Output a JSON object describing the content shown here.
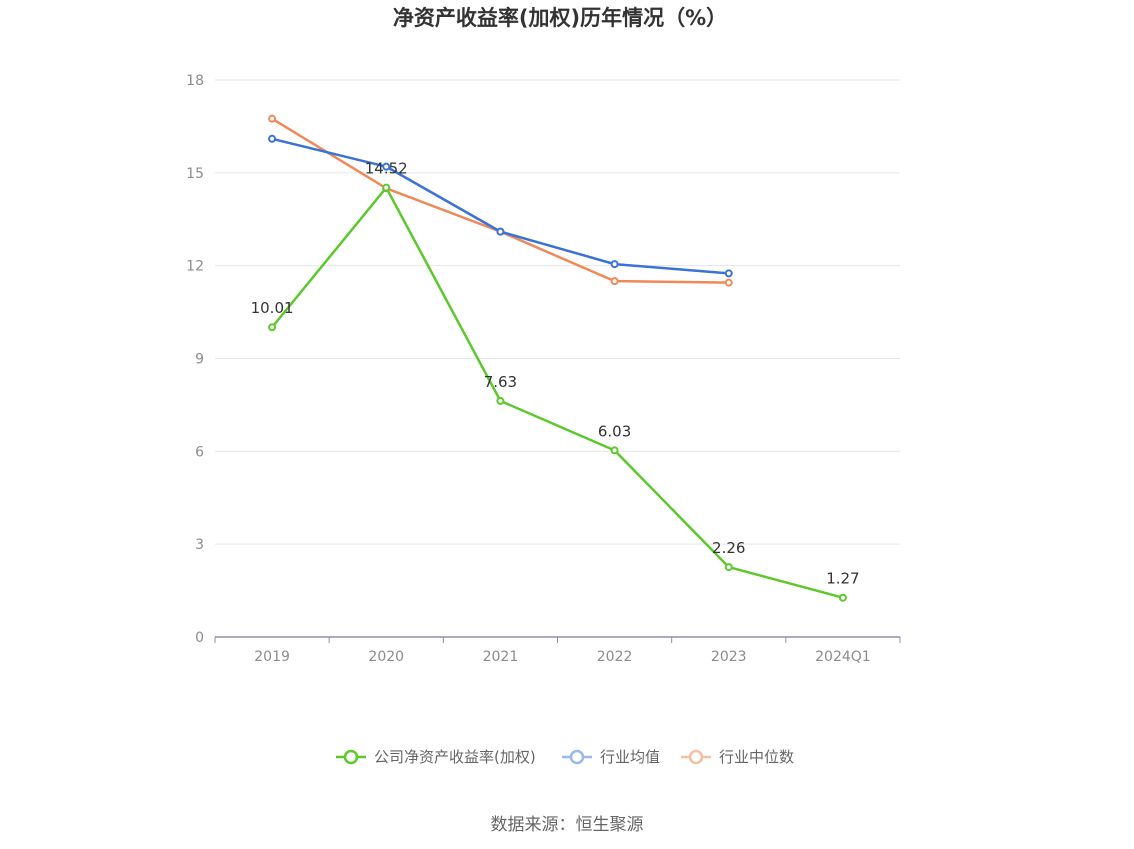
{
  "chart_data": {
    "type": "line",
    "title": "净资产收益率(加权)历年情况（%）",
    "categories": [
      "2019",
      "2020",
      "2021",
      "2022",
      "2023",
      "2024Q1"
    ],
    "ylim": [
      0,
      18
    ],
    "yticks": [
      "0",
      "3",
      "6",
      "9",
      "12",
      "15",
      "18"
    ],
    "grid": true,
    "legend_position": "bottom",
    "series": [
      {
        "name": "公司净资产收益率(加权)",
        "color": "#5cc82b",
        "values": [
          10.01,
          14.52,
          7.63,
          6.03,
          2.26,
          1.27
        ],
        "labels": [
          "10.01",
          "14.52",
          "7.63",
          "6.03",
          "2.26",
          "1.27"
        ]
      },
      {
        "name": "行业均值",
        "color": "#3a72d8",
        "legend_color": "#9bb8ea",
        "values": [
          16.1,
          15.2,
          13.1,
          12.05,
          11.75,
          null
        ]
      },
      {
        "name": "行业中位数",
        "color": "#f08858",
        "legend_color": "#f7bea6",
        "values": [
          16.75,
          14.5,
          13.1,
          11.5,
          11.45,
          null
        ]
      }
    ]
  },
  "source": "数据来源：恒生聚源"
}
